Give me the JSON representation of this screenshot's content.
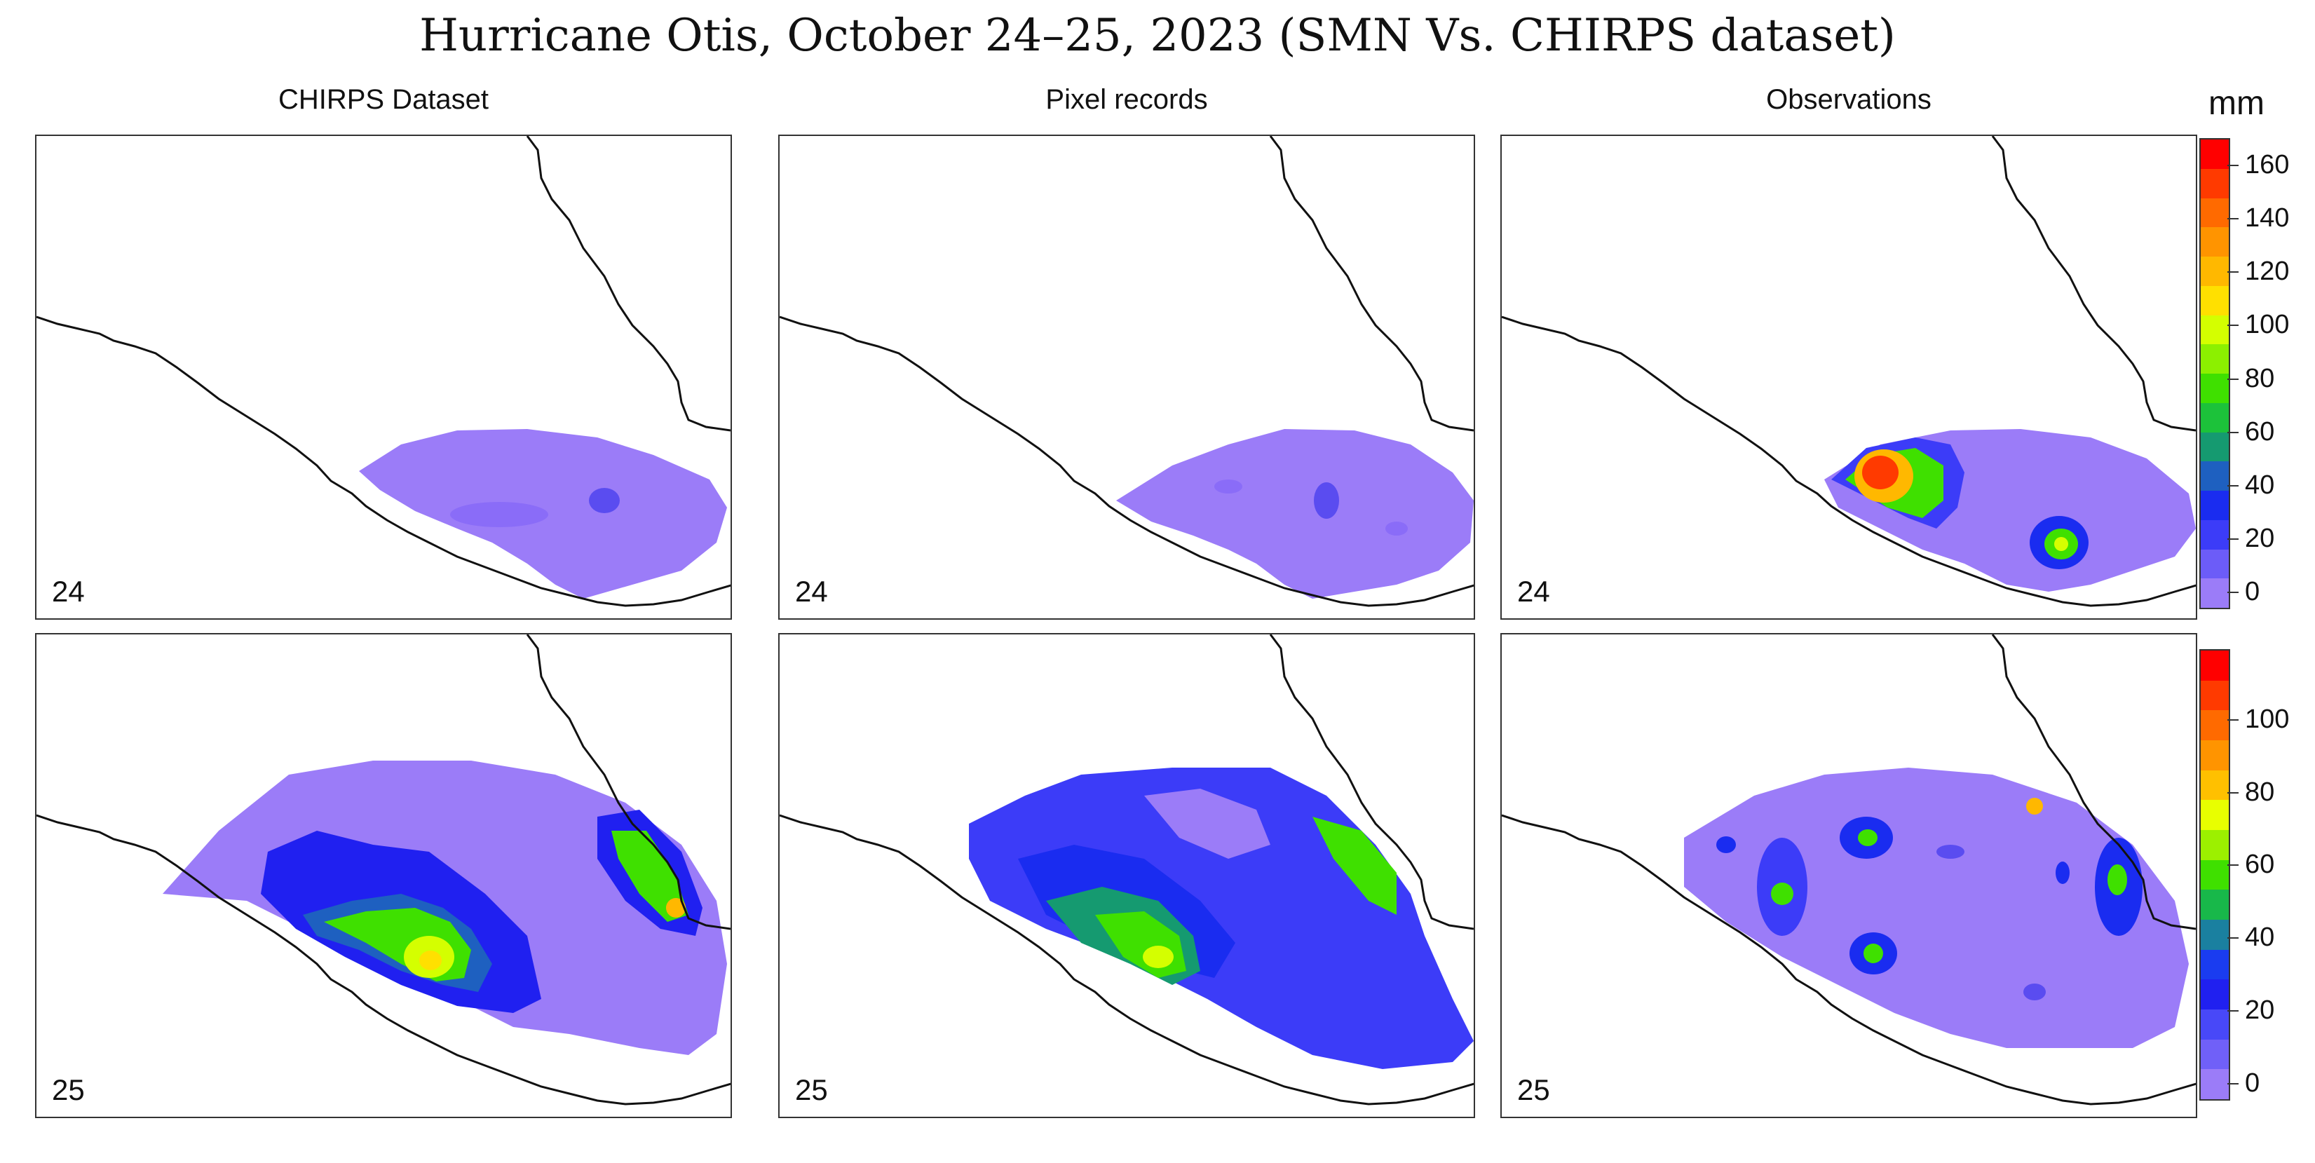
{
  "title": "Hurricane Otis, October 24–25, 2023 (SMN Vs. CHIRPS dataset)",
  "columns": [
    "CHIRPS Dataset",
    "Pixel records",
    "Observations"
  ],
  "days": [
    "24",
    "25"
  ],
  "unit": "mm",
  "colorbar_top": {
    "tick_labels": [
      "160",
      "140",
      "120",
      "100",
      "80",
      "60",
      "40",
      "20",
      "0"
    ],
    "colors": [
      "#ff0000",
      "#ff3a00",
      "#ff6a00",
      "#ff9400",
      "#ffb800",
      "#ffe000",
      "#d4ff00",
      "#8cf000",
      "#3fe000",
      "#1cc23a",
      "#159a70",
      "#1e60c0",
      "#1a2cf0",
      "#3c3cf8",
      "#6c5cf8",
      "#9b7cf8"
    ]
  },
  "colorbar_bottom": {
    "tick_labels": [
      "100",
      "80",
      "60",
      "40",
      "20",
      "0"
    ],
    "colors": [
      "#ff0000",
      "#ff3a00",
      "#ff6a00",
      "#ff9400",
      "#ffc000",
      "#e8ff00",
      "#9cf000",
      "#3fe000",
      "#18b84a",
      "#1a80a0",
      "#1a3cf0",
      "#2020f0",
      "#4848f8",
      "#7060f8",
      "#9b7cf8"
    ]
  },
  "panels": [
    {
      "column": "CHIRPS Dataset",
      "day": "24"
    },
    {
      "column": "Pixel records",
      "day": "24"
    },
    {
      "column": "Observations",
      "day": "24"
    },
    {
      "column": "CHIRPS Dataset",
      "day": "25"
    },
    {
      "column": "Pixel records",
      "day": "25"
    },
    {
      "column": "Observations",
      "day": "25"
    }
  ]
}
